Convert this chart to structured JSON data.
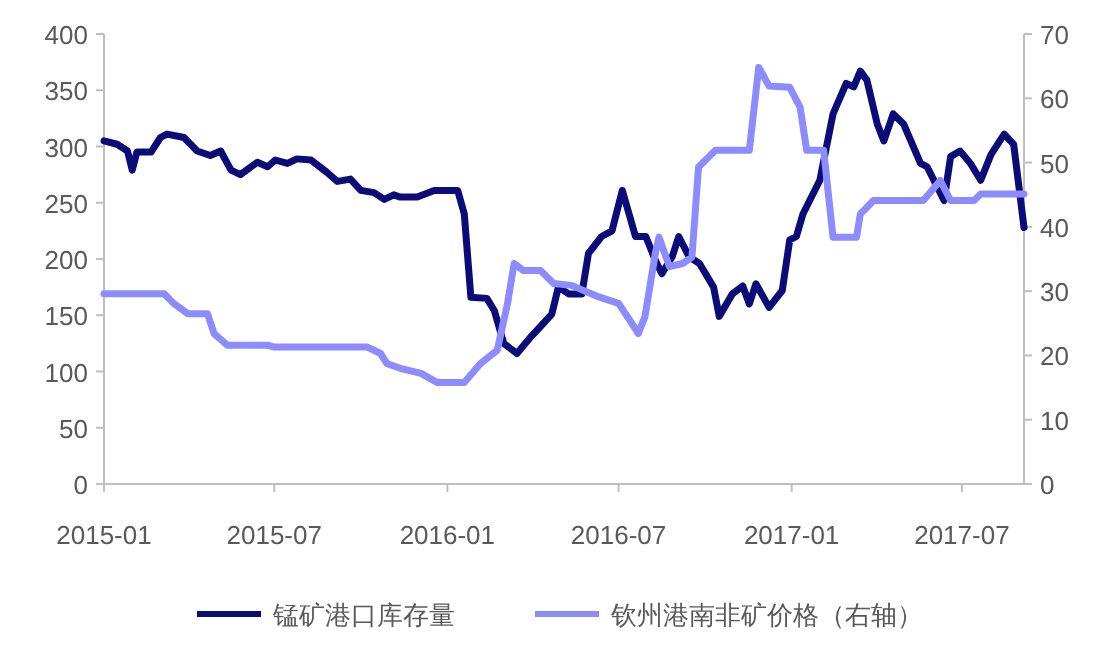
{
  "chart_data": {
    "type": "line",
    "xlim": [
      "2015-01-01",
      "2017-09-05"
    ],
    "xticks": [
      {
        "value": "2015-01-01",
        "label": "2015-01"
      },
      {
        "value": "2015-07-01",
        "label": "2015-07"
      },
      {
        "value": "2016-01-01",
        "label": "2016-01"
      },
      {
        "value": "2016-07-01",
        "label": "2016-07"
      },
      {
        "value": "2017-01-01",
        "label": "2017-01"
      },
      {
        "value": "2017-07-01",
        "label": "2017-07"
      }
    ],
    "ylim": [
      0,
      400
    ],
    "yticks": [
      0,
      50,
      100,
      150,
      200,
      250,
      300,
      350,
      400
    ],
    "y2lim": [
      0,
      70
    ],
    "y2ticks": [
      0,
      10,
      20,
      30,
      40,
      50,
      60,
      70
    ],
    "grid": false,
    "legend": "bottom",
    "line_style": "solid",
    "marker": "none",
    "series": [
      {
        "name": "锰矿港口库存量",
        "color": "#0c0c78",
        "x": [
          "2015-01-01",
          "2015-01-15",
          "2015-01-26",
          "2015-01-31",
          "2015-02-05",
          "2015-02-20",
          "2015-03-02",
          "2015-03-09",
          "2015-03-27",
          "2015-04-10",
          "2015-04-24",
          "2015-05-05",
          "2015-05-16",
          "2015-05-26",
          "2015-06-13",
          "2015-06-24",
          "2015-07-02",
          "2015-07-15",
          "2015-07-25",
          "2015-08-09",
          "2015-08-26",
          "2015-09-06",
          "2015-09-20",
          "2015-10-01",
          "2015-10-15",
          "2015-10-26",
          "2015-11-05",
          "2015-11-12",
          "2015-11-30",
          "2015-12-18",
          "2015-12-28",
          "2016-01-12",
          "2016-01-19",
          "2016-01-26",
          "2016-02-12",
          "2016-02-20",
          "2016-03-01",
          "2016-03-15",
          "2016-03-30",
          "2016-04-09",
          "2016-04-21",
          "2016-04-28",
          "2016-05-09",
          "2016-05-23",
          "2016-05-30",
          "2016-06-13",
          "2016-06-24",
          "2016-07-05",
          "2016-07-19",
          "2016-07-30",
          "2016-08-09",
          "2016-08-16",
          "2016-08-27",
          "2016-09-03",
          "2016-09-14",
          "2016-09-25",
          "2016-10-10",
          "2016-10-16",
          "2016-10-30",
          "2016-11-10",
          "2016-11-17",
          "2016-11-24",
          "2016-12-08",
          "2016-12-22",
          "2016-12-30",
          "2017-01-06",
          "2017-01-13",
          "2017-01-31",
          "2017-02-14",
          "2017-02-28",
          "2017-03-08",
          "2017-03-15",
          "2017-03-22",
          "2017-04-02",
          "2017-04-09",
          "2017-04-19",
          "2017-04-30",
          "2017-05-18",
          "2017-05-25",
          "2017-06-12",
          "2017-06-19",
          "2017-06-29",
          "2017-07-10",
          "2017-07-21",
          "2017-08-01",
          "2017-08-15",
          "2017-08-25",
          "2017-09-05"
        ],
        "values": [
          305,
          302,
          296,
          279,
          295,
          295,
          308,
          311,
          308,
          296,
          292,
          296,
          279,
          275,
          286,
          282,
          288,
          285,
          289,
          288,
          277,
          269,
          271,
          261,
          259,
          253,
          257,
          255,
          255,
          261,
          261,
          261,
          240,
          166,
          165,
          154,
          125,
          116,
          131,
          140,
          151,
          175,
          169,
          169,
          205,
          220,
          225,
          261,
          220,
          220,
          199,
          187,
          202,
          220,
          202,
          196,
          175,
          149,
          169,
          176,
          160,
          178,
          157,
          172,
          217,
          220,
          240,
          270,
          329,
          356,
          353,
          367,
          359,
          320,
          305,
          329,
          320,
          285,
          282,
          252,
          291,
          296,
          285,
          270,
          293,
          311,
          302,
          228
        ]
      },
      {
        "name": "钦州港南非矿价格（右轴）",
        "color": "#8c8cff",
        "axis": "y2",
        "x": [
          "2015-01-01",
          "2015-03-06",
          "2015-03-16",
          "2015-03-31",
          "2015-04-21",
          "2015-04-28",
          "2015-05-12",
          "2015-06-24",
          "2015-07-01",
          "2015-10-08",
          "2015-10-22",
          "2015-10-29",
          "2015-11-12",
          "2015-12-04",
          "2015-12-21",
          "2016-01-19",
          "2016-02-05",
          "2016-02-23",
          "2016-03-05",
          "2016-03-12",
          "2016-03-22",
          "2016-04-09",
          "2016-04-23",
          "2016-05-12",
          "2016-06-10",
          "2016-07-01",
          "2016-07-15",
          "2016-07-22",
          "2016-07-29",
          "2016-08-09",
          "2016-08-13",
          "2016-08-24",
          "2016-09-07",
          "2016-09-17",
          "2016-09-24",
          "2016-10-12",
          "2016-11-17",
          "2016-11-27",
          "2016-12-08",
          "2016-12-30",
          "2017-01-10",
          "2017-01-17",
          "2017-02-04",
          "2017-02-14",
          "2017-03-11",
          "2017-03-15",
          "2017-03-29",
          "2017-05-21",
          "2017-06-08",
          "2017-06-19",
          "2017-07-14",
          "2017-07-21",
          "2017-09-05"
        ],
        "values": [
          29.6,
          29.6,
          28.1,
          26.5,
          26.5,
          23.4,
          21.6,
          21.6,
          21.3,
          21.3,
          20.3,
          18.7,
          18.0,
          17.2,
          15.8,
          15.8,
          18.7,
          20.8,
          28.1,
          34.3,
          33.2,
          33.2,
          31.2,
          30.9,
          29.1,
          28.1,
          25.0,
          23.4,
          26.0,
          35.8,
          38.4,
          33.8,
          34.3,
          35.3,
          49.3,
          51.9,
          51.9,
          64.8,
          61.9,
          61.7,
          58.6,
          51.9,
          51.9,
          38.4,
          38.4,
          42.0,
          44.1,
          44.1,
          47.2,
          44.1,
          44.1,
          45.1,
          45.1
        ]
      }
    ]
  }
}
